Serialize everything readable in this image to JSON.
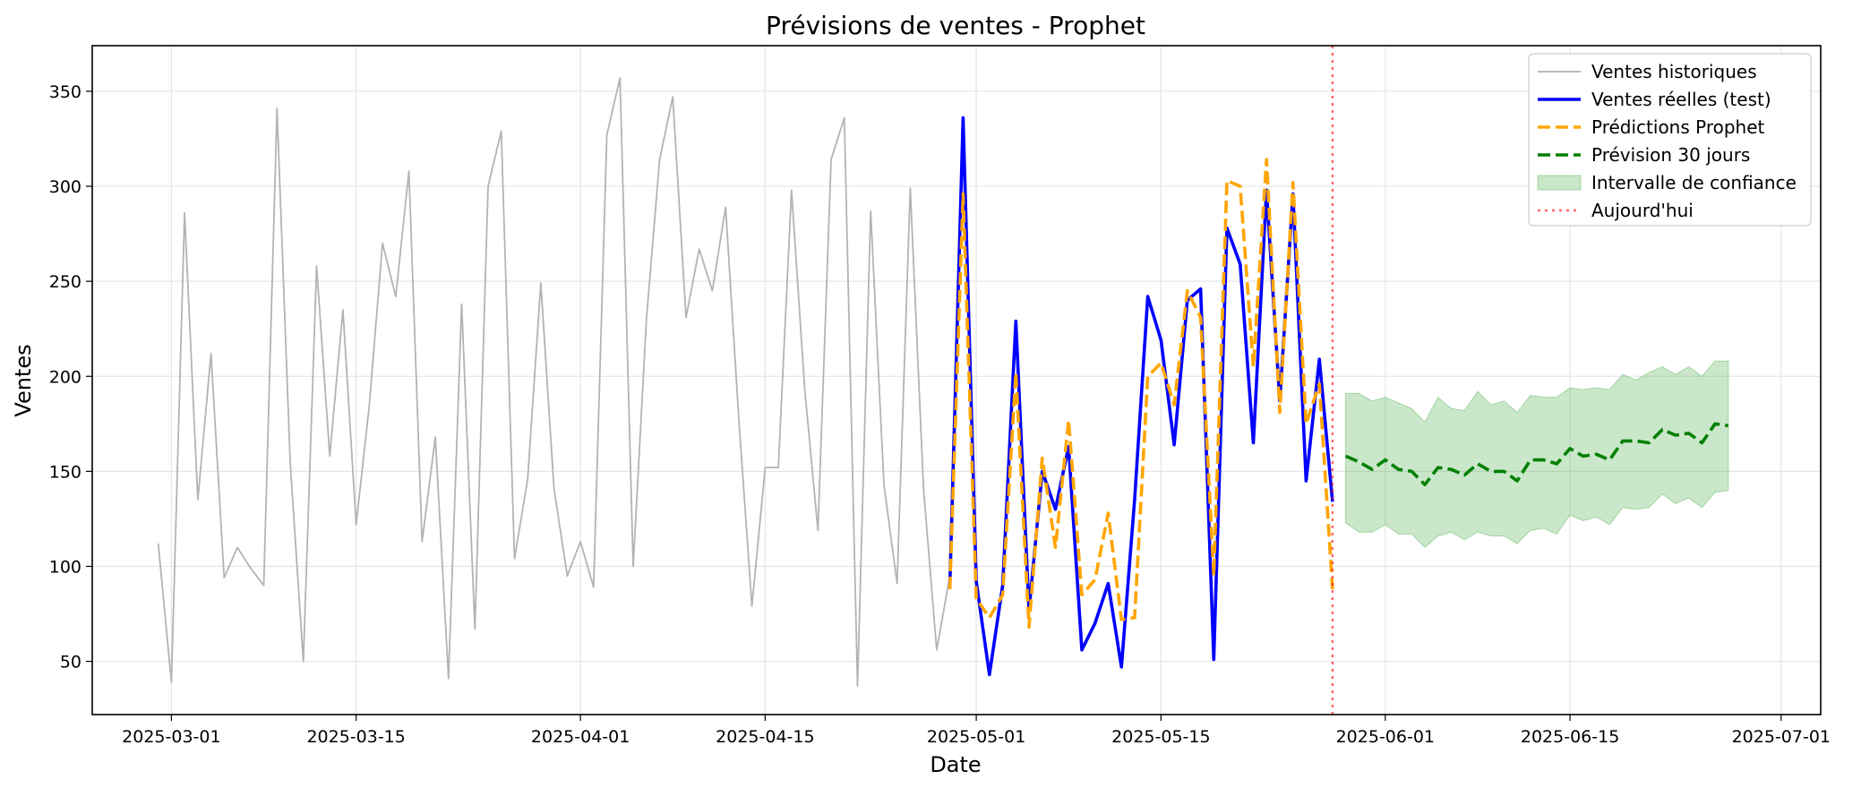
{
  "chart_data": {
    "type": "line",
    "title": "Prévisions de ventes - Prophet",
    "xlabel": "Date",
    "ylabel": "Ventes",
    "xlim": [
      "2025-02-23",
      "2025-07-04"
    ],
    "ylim": [
      22,
      374
    ],
    "x_ticks": [
      "2025-03-01",
      "2025-03-15",
      "2025-04-01",
      "2025-04-15",
      "2025-05-01",
      "2025-05-15",
      "2025-06-01",
      "2025-06-15",
      "2025-07-01"
    ],
    "y_ticks": [
      50,
      100,
      150,
      200,
      250,
      300,
      350
    ],
    "grid": true,
    "legend_position": "top-right",
    "today": "2025-05-28",
    "today_label": "Aujourd'hui",
    "series": [
      {
        "name": "Ventes historiques",
        "color": "#b3b3b3",
        "style": "solid",
        "x": [
          "2025-02-28",
          "2025-03-01",
          "2025-03-02",
          "2025-03-03",
          "2025-03-04",
          "2025-03-05",
          "2025-03-06",
          "2025-03-07",
          "2025-03-08",
          "2025-03-09",
          "2025-03-10",
          "2025-03-11",
          "2025-03-12",
          "2025-03-13",
          "2025-03-14",
          "2025-03-15",
          "2025-03-16",
          "2025-03-17",
          "2025-03-18",
          "2025-03-19",
          "2025-03-20",
          "2025-03-21",
          "2025-03-22",
          "2025-03-23",
          "2025-03-24",
          "2025-03-25",
          "2025-03-26",
          "2025-03-27",
          "2025-03-28",
          "2025-03-29",
          "2025-03-30",
          "2025-03-31",
          "2025-04-01",
          "2025-04-02",
          "2025-04-03",
          "2025-04-04",
          "2025-04-05",
          "2025-04-06",
          "2025-04-07",
          "2025-04-08",
          "2025-04-09",
          "2025-04-10",
          "2025-04-11",
          "2025-04-12",
          "2025-04-13",
          "2025-04-14",
          "2025-04-15",
          "2025-04-16",
          "2025-04-17",
          "2025-04-18",
          "2025-04-19",
          "2025-04-20",
          "2025-04-21",
          "2025-04-22",
          "2025-04-23",
          "2025-04-24",
          "2025-04-25",
          "2025-04-26",
          "2025-04-27",
          "2025-04-28",
          "2025-04-29"
        ],
        "values": [
          112,
          39,
          286,
          135,
          212,
          94,
          110,
          99,
          90,
          341,
          155,
          50,
          258,
          158,
          235,
          122,
          185,
          270,
          242,
          308,
          113,
          168,
          41,
          238,
          67,
          300,
          329,
          104,
          146,
          249,
          141,
          95,
          113,
          89,
          327,
          357,
          100,
          230,
          314,
          347,
          231,
          267,
          245,
          289,
          178,
          79,
          152,
          152,
          298,
          193,
          119,
          314,
          336,
          37,
          287,
          143,
          91,
          299,
          141,
          56,
          95
        ]
      },
      {
        "name": "Ventes réelles (test)",
        "color": "#0000ff",
        "style": "solid",
        "x": [
          "2025-04-29",
          "2025-04-30",
          "2025-05-01",
          "2025-05-02",
          "2025-05-03",
          "2025-05-04",
          "2025-05-05",
          "2025-05-06",
          "2025-05-07",
          "2025-05-08",
          "2025-05-09",
          "2025-05-10",
          "2025-05-11",
          "2025-05-12",
          "2025-05-13",
          "2025-05-14",
          "2025-05-15",
          "2025-05-16",
          "2025-05-17",
          "2025-05-18",
          "2025-05-19",
          "2025-05-20",
          "2025-05-21",
          "2025-05-22",
          "2025-05-23",
          "2025-05-24",
          "2025-05-25",
          "2025-05-26",
          "2025-05-27",
          "2025-05-28"
        ],
        "values": [
          90,
          336,
          92,
          43,
          90,
          229,
          77,
          150,
          130,
          163,
          56,
          70,
          91,
          47,
          135,
          242,
          219,
          164,
          240,
          246,
          51,
          278,
          259,
          165,
          298,
          187,
          296,
          145,
          209,
          134
        ]
      },
      {
        "name": "Prédictions Prophet",
        "color": "#ffa500",
        "style": "dashed",
        "x": [
          "2025-04-29",
          "2025-04-30",
          "2025-05-01",
          "2025-05-02",
          "2025-05-03",
          "2025-05-04",
          "2025-05-05",
          "2025-05-06",
          "2025-05-07",
          "2025-05-08",
          "2025-05-09",
          "2025-05-10",
          "2025-05-11",
          "2025-05-12",
          "2025-05-13",
          "2025-05-14",
          "2025-05-15",
          "2025-05-16",
          "2025-05-17",
          "2025-05-18",
          "2025-05-19",
          "2025-05-20",
          "2025-05-21",
          "2025-05-22",
          "2025-05-23",
          "2025-05-24",
          "2025-05-25",
          "2025-05-26",
          "2025-05-27",
          "2025-05-28"
        ],
        "values": [
          88,
          296,
          83,
          73,
          85,
          202,
          68,
          157,
          110,
          177,
          85,
          93,
          128,
          72,
          73,
          200,
          207,
          185,
          245,
          231,
          95,
          303,
          300,
          205,
          314,
          181,
          302,
          175,
          196,
          88
        ]
      },
      {
        "name": "Prévision 30 jours",
        "color": "#008000",
        "style": "dashed",
        "x": [
          "2025-05-29",
          "2025-05-30",
          "2025-05-31",
          "2025-06-01",
          "2025-06-02",
          "2025-06-03",
          "2025-06-04",
          "2025-06-05",
          "2025-06-06",
          "2025-06-07",
          "2025-06-08",
          "2025-06-09",
          "2025-06-10",
          "2025-06-11",
          "2025-06-12",
          "2025-06-13",
          "2025-06-14",
          "2025-06-15",
          "2025-06-16",
          "2025-06-17",
          "2025-06-18",
          "2025-06-19",
          "2025-06-20",
          "2025-06-21",
          "2025-06-22",
          "2025-06-23",
          "2025-06-24",
          "2025-06-25",
          "2025-06-26",
          "2025-06-27"
        ],
        "values": [
          158,
          155,
          151,
          156,
          151,
          150,
          143,
          152,
          151,
          148,
          154,
          150,
          150,
          145,
          156,
          156,
          154,
          162,
          158,
          159,
          156,
          166,
          166,
          165,
          172,
          169,
          170,
          165,
          175,
          174
        ]
      }
    ],
    "confidence_interval": {
      "name": "Intervalle de confiance",
      "color": "#2ca02c",
      "x": [
        "2025-05-29",
        "2025-05-30",
        "2025-05-31",
        "2025-06-01",
        "2025-06-02",
        "2025-06-03",
        "2025-06-04",
        "2025-06-05",
        "2025-06-06",
        "2025-06-07",
        "2025-06-08",
        "2025-06-09",
        "2025-06-10",
        "2025-06-11",
        "2025-06-12",
        "2025-06-13",
        "2025-06-14",
        "2025-06-15",
        "2025-06-16",
        "2025-06-17",
        "2025-06-18",
        "2025-06-19",
        "2025-06-20",
        "2025-06-21",
        "2025-06-22",
        "2025-06-23",
        "2025-06-24",
        "2025-06-25",
        "2025-06-26",
        "2025-06-27"
      ],
      "lower": [
        123,
        118,
        118,
        122,
        117,
        117,
        110,
        116,
        118,
        114,
        118,
        116,
        116,
        112,
        119,
        120,
        117,
        127,
        124,
        126,
        122,
        131,
        130,
        131,
        138,
        133,
        136,
        131,
        139,
        140
      ],
      "upper": [
        191,
        191,
        187,
        189,
        186,
        183,
        176,
        189,
        183,
        182,
        192,
        185,
        187,
        181,
        190,
        189,
        189,
        194,
        193,
        194,
        193,
        201,
        198,
        202,
        205,
        201,
        205,
        200,
        208,
        208
      ]
    }
  }
}
